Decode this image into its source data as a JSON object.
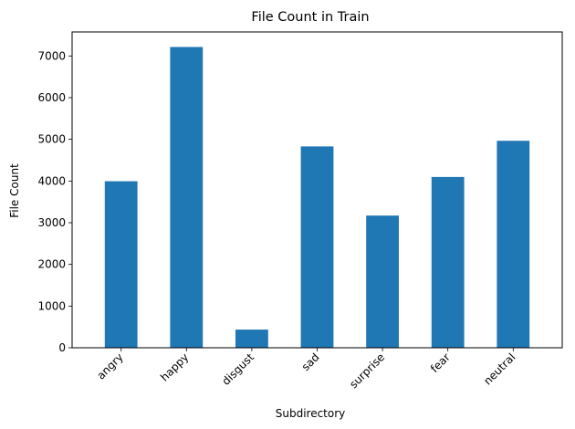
{
  "chart_data": {
    "type": "bar",
    "title": "File Count in Train",
    "xlabel": "Subdirectory",
    "ylabel": "File Count",
    "categories": [
      "angry",
      "happy",
      "disgust",
      "sad",
      "surprise",
      "fear",
      "neutral"
    ],
    "values": [
      3995,
      7215,
      436,
      4830,
      3171,
      4097,
      4965
    ],
    "ylim": [
      0,
      7576
    ],
    "yticks": [
      0,
      1000,
      2000,
      3000,
      4000,
      5000,
      6000,
      7000
    ],
    "bar_color": "#1f77b4",
    "grid": false,
    "legend": false,
    "xtick_rotation_deg": 45
  }
}
